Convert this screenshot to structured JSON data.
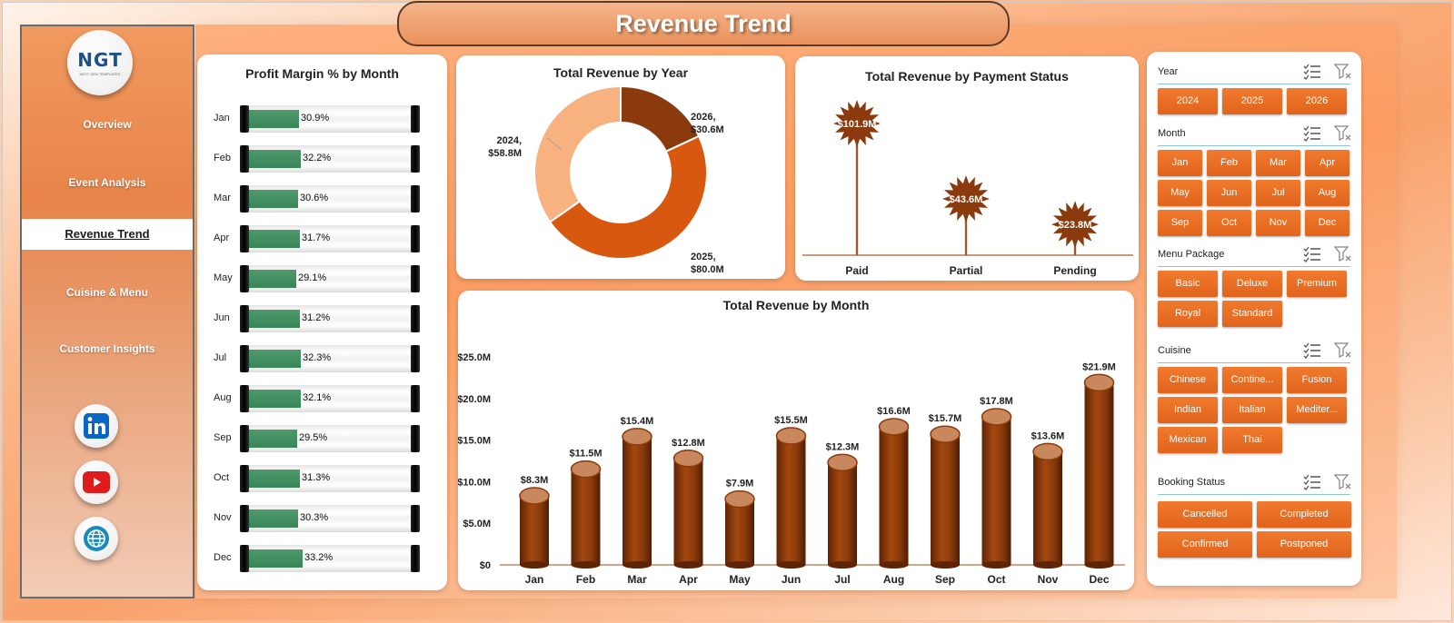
{
  "title": "Revenue Trend",
  "logo": {
    "brand": "NGT",
    "tagline": "NEXT GEN TEMPLATES"
  },
  "nav": [
    {
      "label": "Overview",
      "active": false
    },
    {
      "label": "Event Analysis",
      "active": false
    },
    {
      "label": "Revenue Trend",
      "active": true
    },
    {
      "label": "Cuisine & Menu",
      "active": false
    },
    {
      "label": "Customer Insights",
      "active": false
    }
  ],
  "social": [
    {
      "icon": "linkedin-icon",
      "color": "#0a66c2"
    },
    {
      "icon": "youtube-icon",
      "color": "#e01b1b"
    },
    {
      "icon": "globe-icon",
      "color": "#1a8bb8"
    }
  ],
  "profit_margin": {
    "title": "Profit Margin % by Month",
    "rows": [
      {
        "month": "Jan",
        "value": 30.9,
        "label": "30.9%"
      },
      {
        "month": "Feb",
        "value": 32.2,
        "label": "32.2%"
      },
      {
        "month": "Mar",
        "value": 30.6,
        "label": "30.6%"
      },
      {
        "month": "Apr",
        "value": 31.7,
        "label": "31.7%"
      },
      {
        "month": "May",
        "value": 29.1,
        "label": "29.1%"
      },
      {
        "month": "Jun",
        "value": 31.2,
        "label": "31.2%"
      },
      {
        "month": "Jul",
        "value": 32.3,
        "label": "32.3%"
      },
      {
        "month": "Aug",
        "value": 32.1,
        "label": "32.1%"
      },
      {
        "month": "Sep",
        "value": 29.5,
        "label": "29.5%"
      },
      {
        "month": "Oct",
        "value": 31.3,
        "label": "31.3%"
      },
      {
        "month": "Nov",
        "value": 30.3,
        "label": "30.3%"
      },
      {
        "month": "Dec",
        "value": 33.2,
        "label": "33.2%"
      }
    ]
  },
  "chart_data": [
    {
      "type": "pie",
      "title": "Total Revenue by Year",
      "donut": true,
      "slices": [
        {
          "label": "2026",
          "value": 30.6,
          "display": "$30.6M",
          "color": "#8a3a0c"
        },
        {
          "label": "2025",
          "value": 80.0,
          "display": "$80.0M",
          "color": "#d9580f"
        },
        {
          "label": "2024",
          "value": 58.8,
          "display": "$58.8M",
          "color": "#f7b27f"
        }
      ]
    },
    {
      "type": "bar",
      "title": "Total Revenue by Payment Status",
      "categories": [
        "Paid",
        "Partial",
        "Pending"
      ],
      "values": [
        101.9,
        43.6,
        23.8
      ],
      "value_labels": [
        "$101.9M",
        "$43.6M",
        "$23.8M"
      ],
      "color": "#8a3a0c"
    },
    {
      "type": "bar",
      "title": "Total Revenue by Month",
      "categories": [
        "Jan",
        "Feb",
        "Mar",
        "Apr",
        "May",
        "Jun",
        "Jul",
        "Aug",
        "Sep",
        "Oct",
        "Nov",
        "Dec"
      ],
      "values": [
        8.3,
        11.5,
        15.4,
        12.8,
        7.9,
        15.5,
        12.3,
        16.6,
        15.7,
        17.8,
        13.6,
        21.9
      ],
      "value_labels": [
        "$8.3M",
        "$11.5M",
        "$15.4M",
        "$12.8M",
        "$7.9M",
        "$15.5M",
        "$12.3M",
        "$16.6M",
        "$15.7M",
        "$17.8M",
        "$13.6M",
        "$21.9M"
      ],
      "yticks": [
        "$0",
        "$5.0M",
        "$10.0M",
        "$15.0M",
        "$20.0M",
        "$25.0M"
      ],
      "ylim": [
        0,
        25
      ],
      "color": "#8a3a0c"
    }
  ],
  "slicers": [
    {
      "label": "Year",
      "buttons": [
        "2024",
        "2025",
        "2026"
      ]
    },
    {
      "label": "Month",
      "buttons": [
        "Jan",
        "Feb",
        "Mar",
        "Apr",
        "May",
        "Jun",
        "Jul",
        "Aug",
        "Sep",
        "Oct",
        "Nov",
        "Dec"
      ]
    },
    {
      "label": "Menu Package",
      "buttons": [
        "Basic",
        "Deluxe",
        "Premium",
        "Royal",
        "Standard"
      ]
    },
    {
      "label": "Cuisine",
      "buttons": [
        "Chinese",
        "Contine...",
        "Fusion",
        "Indian",
        "Italian",
        "Mediter...",
        "Mexican",
        "Thai"
      ]
    },
    {
      "label": "Booking Status",
      "buttons": [
        "Cancelled",
        "Completed",
        "Confirmed",
        "Postponed"
      ]
    }
  ]
}
